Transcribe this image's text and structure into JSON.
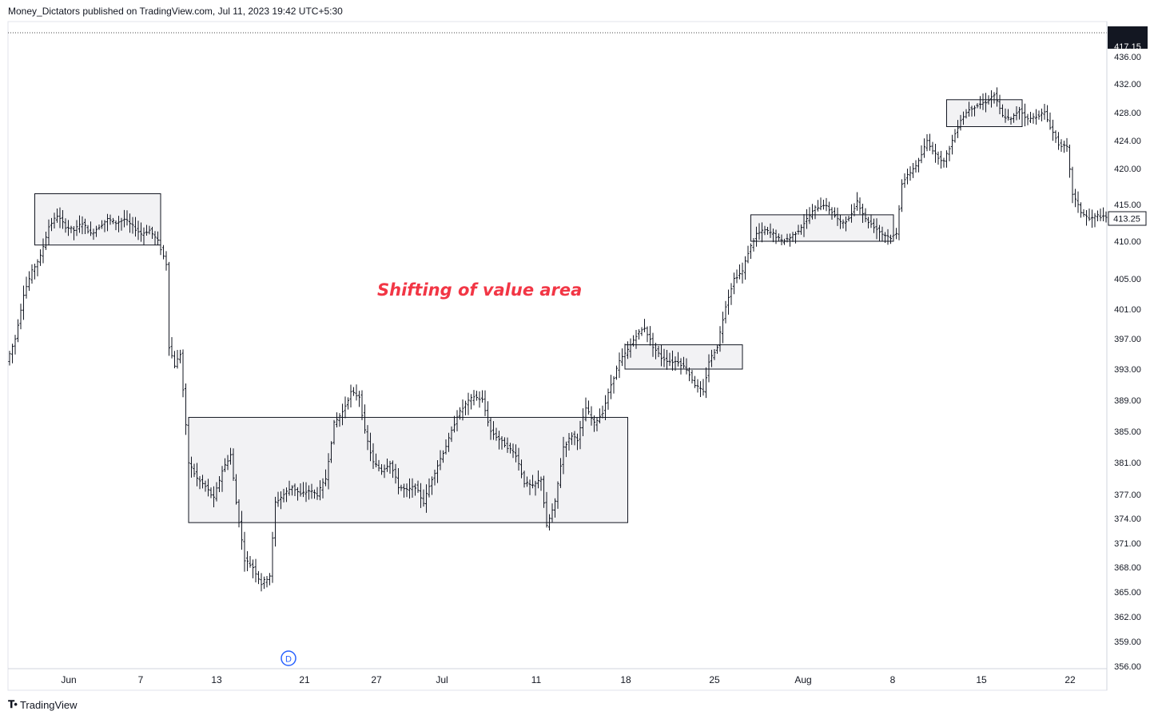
{
  "header": {
    "publisher": "Money_Dictators published on TradingView.com, Jul 11, 2023 19:42 UTC+5:30"
  },
  "footer": {
    "brand": "TradingView",
    "logo_icon": "tradingview-logo-icon"
  },
  "chart_data": {
    "type": "bar",
    "style": "ohlc-bars",
    "title": "",
    "xlabel": "",
    "ylabel": "",
    "y_axis_ticks": [
      "436.00",
      "432.00",
      "428.00",
      "424.00",
      "420.00",
      "415.00",
      "410.00",
      "405.00",
      "401.00",
      "397.00",
      "393.00",
      "389.00",
      "385.00",
      "381.00",
      "377.00",
      "374.00",
      "371.00",
      "368.00",
      "365.00",
      "362.00",
      "359.00",
      "356.00"
    ],
    "x_axis_ticks": [
      "Jun",
      "7",
      "13",
      "21",
      "27",
      "Jul",
      "11",
      "18",
      "25",
      "Aug",
      "8",
      "15",
      "22"
    ],
    "last_price_label": "413.25",
    "top_partial_label": "417.15",
    "annotation": "Shifting of value area",
    "annotation_color": "#f23645",
    "dividend_marker": "D",
    "dividend_marker_color": "#2962ff",
    "ylim": [
      355.5,
      437.5
    ],
    "price_path": [
      [
        0,
        394
      ],
      [
        3,
        397
      ],
      [
        6,
        403
      ],
      [
        9,
        406
      ],
      [
        12,
        408
      ],
      [
        15,
        412
      ],
      [
        18,
        413.5
      ],
      [
        21,
        412
      ],
      [
        24,
        411.5
      ],
      [
        27,
        412.5
      ],
      [
        30,
        411
      ],
      [
        33,
        412
      ],
      [
        36,
        413
      ],
      [
        39,
        412.5
      ],
      [
        42,
        413
      ],
      [
        45,
        412
      ],
      [
        48,
        411
      ],
      [
        51,
        411.5
      ],
      [
        54,
        410
      ],
      [
        57,
        407
      ],
      [
        58,
        396
      ],
      [
        60,
        393.5
      ],
      [
        62,
        395
      ],
      [
        65,
        381
      ],
      [
        68,
        379
      ],
      [
        71,
        378
      ],
      [
        74,
        376.5
      ],
      [
        77,
        380
      ],
      [
        80,
        382
      ],
      [
        82,
        376
      ],
      [
        85,
        369
      ],
      [
        88,
        368
      ],
      [
        91,
        366
      ],
      [
        94,
        367
      ],
      [
        96,
        376
      ],
      [
        99,
        377
      ],
      [
        102,
        378
      ],
      [
        105,
        377
      ],
      [
        108,
        377.5
      ],
      [
        111,
        377
      ],
      [
        114,
        379
      ],
      [
        117,
        386
      ],
      [
        120,
        387.5
      ],
      [
        123,
        390
      ],
      [
        126,
        389.5
      ],
      [
        128,
        385
      ],
      [
        131,
        381
      ],
      [
        134,
        380
      ],
      [
        137,
        381
      ],
      [
        140,
        378
      ],
      [
        143,
        377.5
      ],
      [
        146,
        378
      ],
      [
        149,
        376
      ],
      [
        152,
        379
      ],
      [
        155,
        381.5
      ],
      [
        158,
        384
      ],
      [
        161,
        387
      ],
      [
        164,
        388.5
      ],
      [
        167,
        389.5
      ],
      [
        170,
        389
      ],
      [
        173,
        385
      ],
      [
        176,
        384
      ],
      [
        179,
        383
      ],
      [
        182,
        382
      ],
      [
        185,
        378.5
      ],
      [
        188,
        378
      ],
      [
        191,
        379
      ],
      [
        193,
        373
      ],
      [
        196,
        376
      ],
      [
        199,
        383
      ],
      [
        202,
        384.5
      ],
      [
        204,
        384
      ],
      [
        207,
        388
      ],
      [
        210,
        386
      ],
      [
        213,
        387.5
      ],
      [
        216,
        391
      ],
      [
        219,
        394
      ],
      [
        222,
        395.5
      ],
      [
        225,
        397.5
      ],
      [
        228,
        398.5
      ],
      [
        231,
        396
      ],
      [
        234,
        394.5
      ],
      [
        237,
        394
      ],
      [
        240,
        394
      ],
      [
        243,
        393
      ],
      [
        246,
        391
      ],
      [
        249,
        390
      ],
      [
        251,
        394
      ],
      [
        254,
        396
      ],
      [
        257,
        401.5
      ],
      [
        260,
        405
      ],
      [
        263,
        406
      ],
      [
        265,
        408.5
      ],
      [
        268,
        411
      ],
      [
        271,
        411.5
      ],
      [
        274,
        411
      ],
      [
        277,
        410
      ],
      [
        280,
        410.5
      ],
      [
        283,
        411.5
      ],
      [
        286,
        413
      ],
      [
        289,
        414.5
      ],
      [
        292,
        415
      ],
      [
        295,
        414
      ],
      [
        298,
        412.5
      ],
      [
        301,
        413
      ],
      [
        304,
        415.5
      ],
      [
        307,
        413
      ],
      [
        310,
        412
      ],
      [
        313,
        411
      ],
      [
        316,
        410.5
      ],
      [
        318,
        411
      ],
      [
        320,
        418
      ],
      [
        323,
        419.5
      ],
      [
        326,
        421
      ],
      [
        329,
        424
      ],
      [
        332,
        422
      ],
      [
        335,
        421
      ],
      [
        338,
        424
      ],
      [
        341,
        427
      ],
      [
        344,
        428.5
      ],
      [
        347,
        429
      ],
      [
        350,
        429.5
      ],
      [
        353,
        430.5
      ],
      [
        356,
        427.5
      ],
      [
        359,
        427
      ],
      [
        362,
        428.5
      ],
      [
        365,
        427
      ],
      [
        368,
        427.5
      ],
      [
        371,
        428
      ],
      [
        373,
        426
      ],
      [
        376,
        423.5
      ],
      [
        379,
        423
      ],
      [
        381,
        416.5
      ],
      [
        384,
        414
      ],
      [
        387,
        413
      ],
      [
        390,
        413.5
      ],
      [
        392,
        413.25
      ]
    ],
    "boxes": [
      {
        "t0": 9,
        "t1": 54,
        "low": 409.5,
        "high": 416.5
      },
      {
        "t0": 64,
        "t1": 221,
        "low": 373.5,
        "high": 386.8
      },
      {
        "t0": 220,
        "t1": 262,
        "low": 393.0,
        "high": 396.2
      },
      {
        "t0": 265,
        "t1": 316,
        "low": 410.0,
        "high": 413.6
      },
      {
        "t0": 335,
        "t1": 362,
        "low": 426.0,
        "high": 429.8
      }
    ],
    "grid": false,
    "legend": "none"
  }
}
